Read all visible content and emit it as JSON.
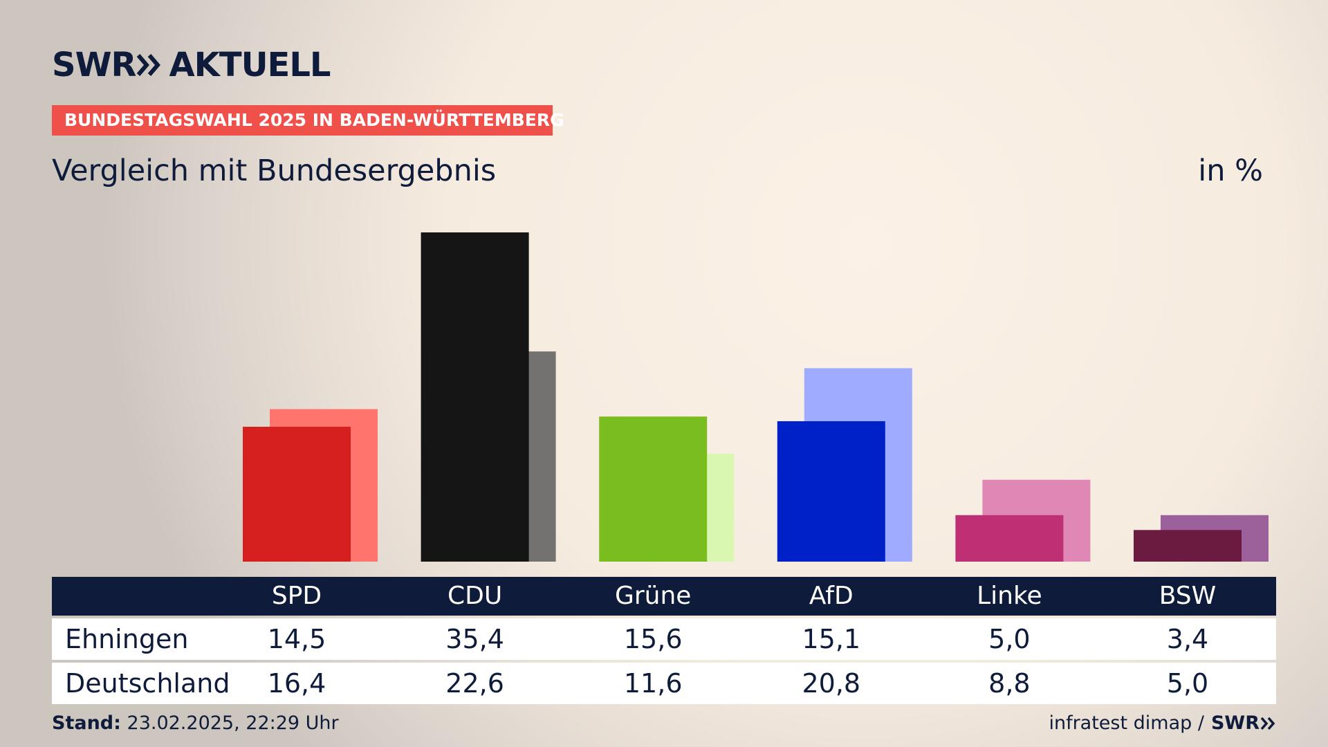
{
  "brand": {
    "swr": "SWR",
    "aktuell": "AKTUELL"
  },
  "tag": "BUNDESTAGSWAHL 2025 IN BADEN-WÜRTTEMBERG",
  "subtitle": "Vergleich mit Bundesergebnis",
  "unit": "in %",
  "table": {
    "rows": [
      {
        "label": "Ehningen"
      },
      {
        "label": "Deutschland"
      }
    ]
  },
  "footer": {
    "stand_label": "Stand:",
    "stand_value": "23.02.2025, 22:29 Uhr",
    "source": "infratest dimap /",
    "logo": "SWR"
  },
  "chart_data": {
    "type": "bar",
    "categories": [
      "SPD",
      "CDU",
      "Grüne",
      "AfD",
      "Linke",
      "BSW"
    ],
    "series": [
      {
        "name": "Ehningen",
        "values": [
          14.5,
          35.4,
          15.6,
          15.1,
          5.0,
          3.4
        ],
        "labels": [
          "14,5",
          "35,4",
          "15,6",
          "15,1",
          "5,0",
          "3,4"
        ],
        "colors": [
          "#d6201f",
          "#151515",
          "#79bd1e",
          "#0021c8",
          "#be2f73",
          "#6b1a40"
        ]
      },
      {
        "name": "Deutschland",
        "values": [
          16.4,
          22.6,
          11.6,
          20.8,
          8.8,
          5.0
        ],
        "labels": [
          "16,4",
          "22,6",
          "11,6",
          "20,8",
          "8,8",
          "5,0"
        ],
        "colors": [
          "#ff756e",
          "#737270",
          "#d9f7b0",
          "#9eabff",
          "#df88b6",
          "#9c619a"
        ]
      }
    ],
    "ylim": [
      0,
      35.4
    ],
    "grid": false,
    "legend": "none"
  }
}
